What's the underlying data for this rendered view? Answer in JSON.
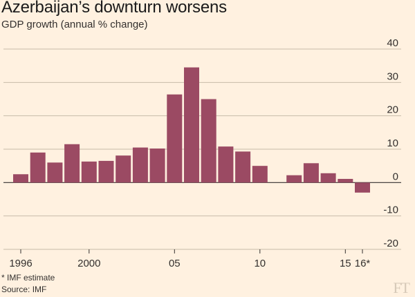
{
  "header": {
    "title": "Azerbaijan’s downturn worsens",
    "subtitle": "GDP growth (annual % change)"
  },
  "footer": {
    "note": "* IMF estimate",
    "source": "Source: IMF",
    "logo": "FT"
  },
  "colors": {
    "bar": "#9b4a63",
    "grid": "#c7bba9",
    "zero": "#33302e",
    "background": "#fff1e0"
  },
  "chart_data": {
    "type": "bar",
    "title": "Azerbaijan’s downturn worsens",
    "subtitle": "GDP growth (annual % change)",
    "xlabel": "",
    "ylabel": "",
    "ylim": [
      -20,
      40
    ],
    "yticks": [
      40,
      30,
      20,
      10,
      0,
      -10,
      -20
    ],
    "ytick_labels": [
      "40",
      "30",
      "20",
      "10",
      "0",
      "-10",
      "-20"
    ],
    "grid": true,
    "x": [
      1996,
      1997,
      1998,
      1999,
      2000,
      2001,
      2002,
      2003,
      2004,
      2005,
      2006,
      2007,
      2008,
      2009,
      2010,
      2011,
      2012,
      2013,
      2014,
      2015,
      2016
    ],
    "values": [
      2.5,
      9,
      6,
      11.5,
      6.3,
      6.5,
      8.1,
      10.5,
      10.2,
      26.4,
      34.5,
      25,
      10.8,
      9.3,
      5,
      null,
      2.2,
      5.8,
      2.8,
      1.1,
      -3
    ],
    "xtick_labels": [
      {
        "x": 1996,
        "label": "1996"
      },
      {
        "x": 2000,
        "label": "2000"
      },
      {
        "x": 2005,
        "label": "05"
      },
      {
        "x": 2010,
        "label": "10"
      },
      {
        "x": 2015,
        "label": "15"
      },
      {
        "x": 2016,
        "label": "16*"
      }
    ]
  }
}
